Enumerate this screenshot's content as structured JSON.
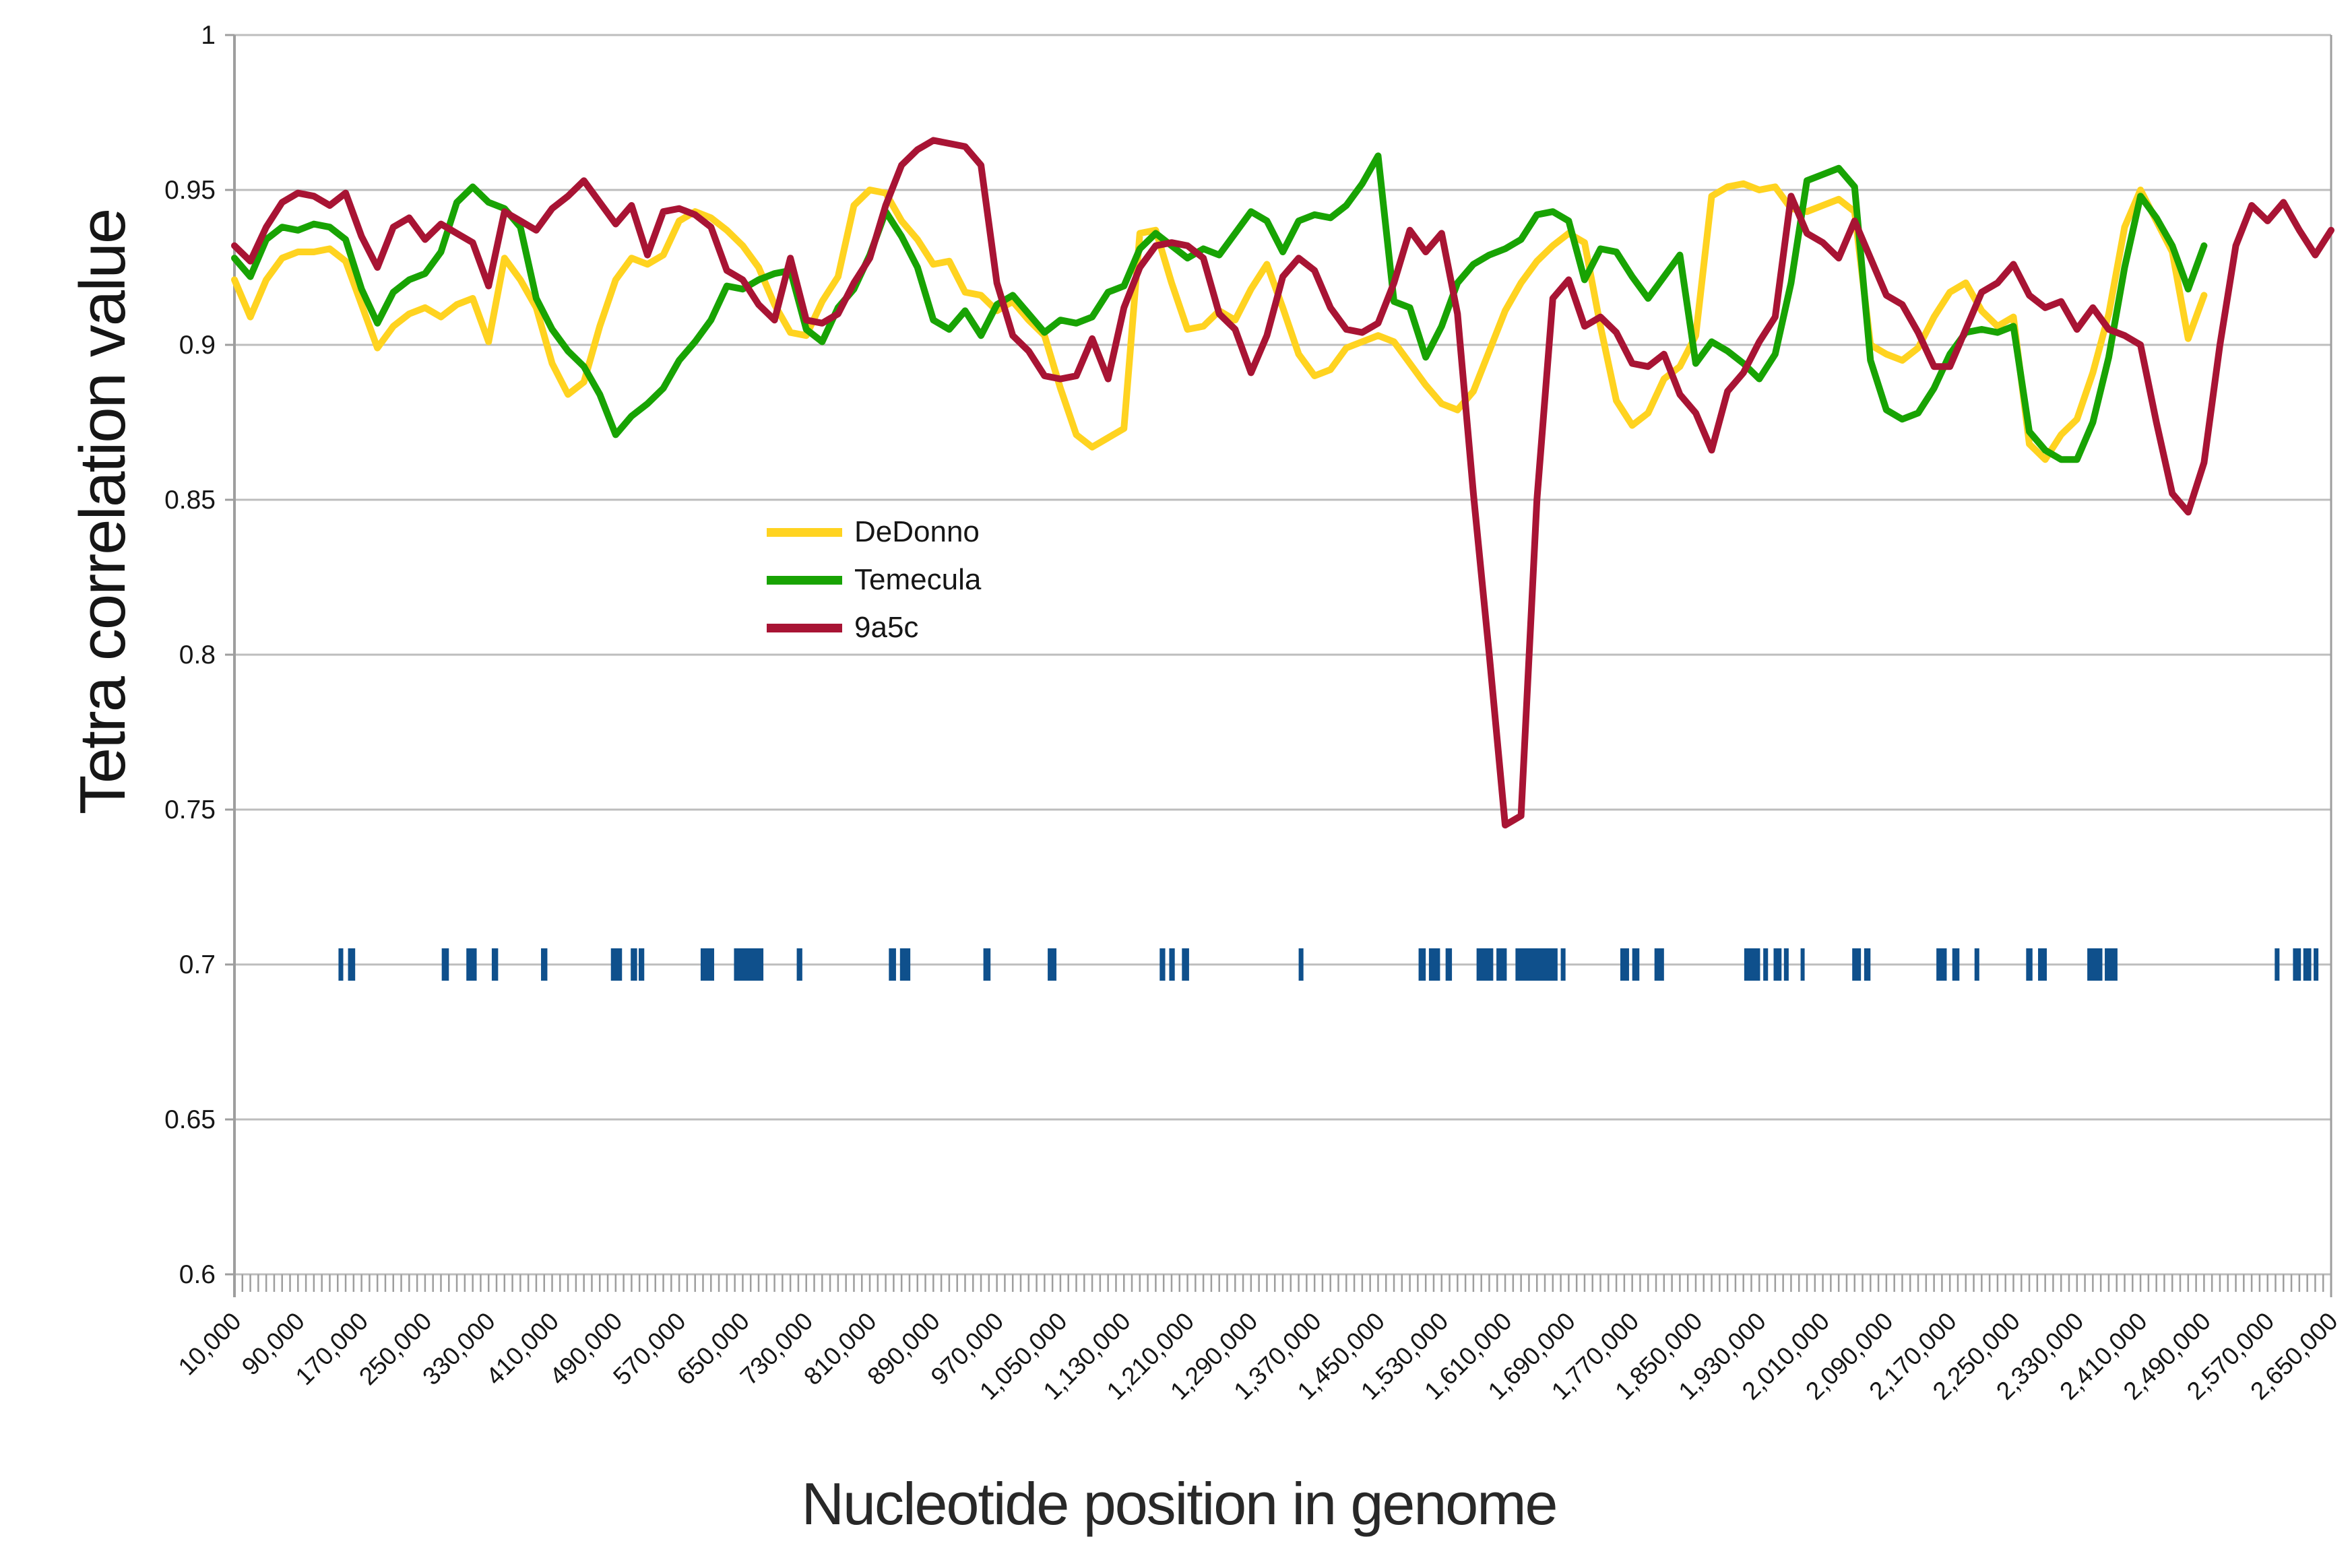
{
  "chart_data": {
    "type": "line",
    "title": "",
    "xlabel": "Nucleotide position in genome",
    "ylabel": "Tetra correlation value",
    "grid": "horizontal",
    "legend_position": "inside-left-middle",
    "x_axis": {
      "min": 10000,
      "max": 2650000,
      "label_step": 80000,
      "minor_tick_step": 10000,
      "tick_rotation": -45,
      "first_label": "10,000",
      "last_label": "2,650,000"
    },
    "y_axis": {
      "min": 0.6,
      "max": 1.0,
      "tick_step": 0.05,
      "tick_labels": [
        "1",
        "0.95",
        "0.9",
        "0.85",
        "0.8",
        "0.75",
        "0.7",
        "0.65",
        "0.6"
      ]
    },
    "x_start": 10000,
    "x_step": 20000,
    "series": [
      {
        "name": "DeDonno",
        "color": "#FFD320",
        "values": [
          0.921,
          0.909,
          0.921,
          0.928,
          0.93,
          0.93,
          0.931,
          0.927,
          0.913,
          0.899,
          0.906,
          0.91,
          0.912,
          0.909,
          0.913,
          0.915,
          0.901,
          0.928,
          0.921,
          0.912,
          0.894,
          0.884,
          0.888,
          0.906,
          0.921,
          0.928,
          0.926,
          0.929,
          0.94,
          0.943,
          0.941,
          0.937,
          0.932,
          0.925,
          0.913,
          0.904,
          0.903,
          0.914,
          0.922,
          0.945,
          0.95,
          0.949,
          0.94,
          0.934,
          0.926,
          0.927,
          0.917,
          0.916,
          0.911,
          0.914,
          0.908,
          0.903,
          0.886,
          0.871,
          0.867,
          0.87,
          0.873,
          0.936,
          0.937,
          0.92,
          0.905,
          0.906,
          0.911,
          0.908,
          0.918,
          0.926,
          0.912,
          0.897,
          0.89,
          0.892,
          0.899,
          0.901,
          0.903,
          0.901,
          0.894,
          0.887,
          0.881,
          0.879,
          0.885,
          0.898,
          0.911,
          0.92,
          0.927,
          0.932,
          0.936,
          0.933,
          0.906,
          0.882,
          0.874,
          0.878,
          0.889,
          0.893,
          0.903,
          0.948,
          0.951,
          0.952,
          0.95,
          0.951,
          0.944,
          0.943,
          0.945,
          0.947,
          0.943,
          0.9,
          0.897,
          0.895,
          0.899,
          0.909,
          0.917,
          0.92,
          0.911,
          0.906,
          0.909,
          0.868,
          0.863,
          0.871,
          0.876,
          0.891,
          0.91,
          0.938,
          0.95,
          0.94,
          0.93,
          0.902,
          0.916
        ]
      },
      {
        "name": "Temecula",
        "color": "#18A303",
        "values": [
          0.928,
          0.922,
          0.934,
          0.938,
          0.937,
          0.939,
          0.938,
          0.934,
          0.918,
          0.907,
          0.917,
          0.921,
          0.923,
          0.93,
          0.946,
          0.951,
          0.946,
          0.944,
          0.938,
          0.915,
          0.905,
          0.898,
          0.893,
          0.884,
          0.871,
          0.877,
          0.881,
          0.886,
          0.895,
          0.901,
          0.908,
          0.919,
          0.918,
          0.921,
          0.923,
          0.924,
          0.905,
          0.901,
          0.912,
          0.918,
          0.929,
          0.943,
          0.935,
          0.925,
          0.908,
          0.905,
          0.911,
          0.903,
          0.913,
          0.916,
          0.91,
          0.904,
          0.908,
          0.907,
          0.909,
          0.917,
          0.919,
          0.931,
          0.936,
          0.932,
          0.928,
          0.931,
          0.929,
          0.936,
          0.943,
          0.94,
          0.93,
          0.94,
          0.942,
          0.941,
          0.945,
          0.952,
          0.961,
          0.914,
          0.912,
          0.896,
          0.906,
          0.92,
          0.926,
          0.929,
          0.931,
          0.934,
          0.942,
          0.943,
          0.94,
          0.921,
          0.931,
          0.93,
          0.922,
          0.915,
          0.922,
          0.929,
          0.894,
          0.901,
          0.898,
          0.894,
          0.889,
          0.897,
          0.92,
          0.953,
          0.955,
          0.957,
          0.951,
          0.895,
          0.879,
          0.876,
          0.878,
          0.886,
          0.897,
          0.904,
          0.905,
          0.904,
          0.906,
          0.872,
          0.866,
          0.863,
          0.863,
          0.875,
          0.896,
          0.925,
          0.948,
          0.941,
          0.932,
          0.918,
          0.932
        ]
      },
      {
        "name": "9a5c",
        "color": "#A81434",
        "values": [
          0.932,
          0.927,
          0.938,
          0.946,
          0.949,
          0.948,
          0.945,
          0.949,
          0.935,
          0.925,
          0.938,
          0.941,
          0.934,
          0.939,
          0.936,
          0.933,
          0.919,
          0.943,
          0.94,
          0.937,
          0.944,
          0.948,
          0.953,
          0.946,
          0.939,
          0.945,
          0.929,
          0.943,
          0.944,
          0.942,
          0.938,
          0.924,
          0.921,
          0.913,
          0.908,
          0.928,
          0.908,
          0.907,
          0.91,
          0.92,
          0.928,
          0.945,
          0.958,
          0.963,
          0.966,
          0.965,
          0.964,
          0.958,
          0.92,
          0.903,
          0.898,
          0.89,
          0.889,
          0.89,
          0.902,
          0.889,
          0.912,
          0.925,
          0.932,
          0.933,
          0.932,
          0.928,
          0.91,
          0.905,
          0.891,
          0.903,
          0.922,
          0.928,
          0.924,
          0.912,
          0.905,
          0.904,
          0.907,
          0.92,
          0.937,
          0.93,
          0.936,
          0.91,
          0.852,
          0.8,
          0.745,
          0.748,
          0.85,
          0.915,
          0.921,
          0.906,
          0.909,
          0.904,
          0.894,
          0.893,
          0.897,
          0.884,
          0.878,
          0.866,
          0.885,
          0.891,
          0.901,
          0.909,
          0.948,
          0.936,
          0.933,
          0.928,
          0.94,
          0.928,
          0.916,
          0.913,
          0.904,
          0.893,
          0.893,
          0.905,
          0.917,
          0.92,
          0.926,
          0.916,
          0.912,
          0.914,
          0.905,
          0.912,
          0.905,
          0.903,
          0.9,
          0.875,
          0.852,
          0.846,
          0.862,
          0.9,
          0.932,
          0.945,
          0.94,
          0.946,
          0.937,
          0.929,
          0.937
        ]
      }
    ],
    "feature_markers": {
      "description": "blue-tick-marks-at-0.7",
      "color": "#0F508C",
      "y_value": 0.7,
      "ranges_bp": [
        [
          141000,
          147000
        ],
        [
          153000,
          162000
        ],
        [
          271000,
          280000
        ],
        [
          302000,
          315000
        ],
        [
          334000,
          342000
        ],
        [
          396000,
          404000
        ],
        [
          484000,
          498000
        ],
        [
          509000,
          517000
        ],
        [
          519000,
          526000
        ],
        [
          597000,
          614000
        ],
        [
          639000,
          676000
        ],
        [
          718000,
          725000
        ],
        [
          834000,
          843000
        ],
        [
          848000,
          861000
        ],
        [
          953000,
          962000
        ],
        [
          1034000,
          1045000
        ],
        [
          1175000,
          1182000
        ],
        [
          1187000,
          1194000
        ],
        [
          1203000,
          1212000
        ],
        [
          1350000,
          1356000
        ],
        [
          1501000,
          1510000
        ],
        [
          1514000,
          1528000
        ],
        [
          1535000,
          1543000
        ],
        [
          1574000,
          1595000
        ],
        [
          1599000,
          1612000
        ],
        [
          1623000,
          1676000
        ],
        [
          1680000,
          1686000
        ],
        [
          1755000,
          1766000
        ],
        [
          1770000,
          1779000
        ],
        [
          1798000,
          1810000
        ],
        [
          1911000,
          1931000
        ],
        [
          1935000,
          1941000
        ],
        [
          1948000,
          1958000
        ],
        [
          1961000,
          1967000
        ],
        [
          1982000,
          1986000
        ],
        [
          2047000,
          2058000
        ],
        [
          2062000,
          2070000
        ],
        [
          2153000,
          2166000
        ],
        [
          2173000,
          2182000
        ],
        [
          2201000,
          2207000
        ],
        [
          2266000,
          2274000
        ],
        [
          2281000,
          2292000
        ],
        [
          2343000,
          2362000
        ],
        [
          2365000,
          2381000
        ],
        [
          2579000,
          2585000
        ],
        [
          2602000,
          2612000
        ],
        [
          2615000,
          2625000
        ],
        [
          2628000,
          2634000
        ]
      ]
    },
    "colors": {
      "grid": "#BDBDBD",
      "axis": "#9E9E9E",
      "tick_text": "#161616"
    }
  }
}
